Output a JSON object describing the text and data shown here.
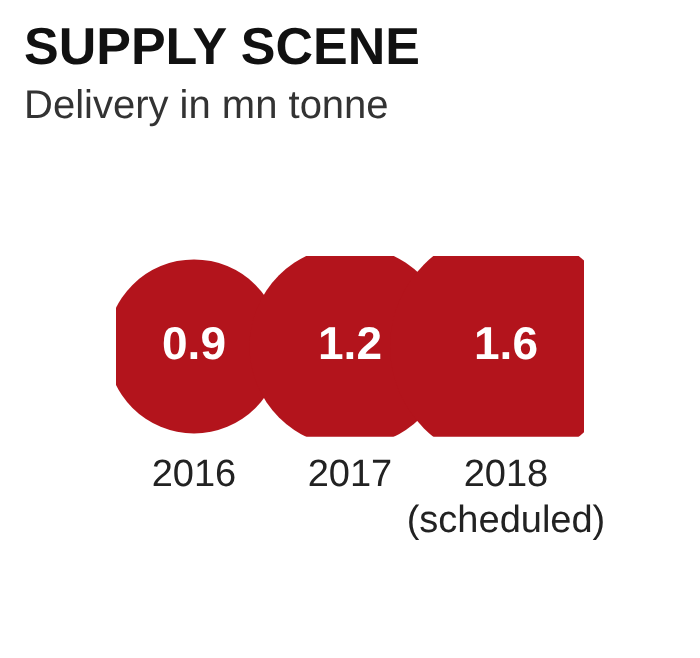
{
  "chart_data": {
    "type": "other",
    "title": "SUPPLY SCENE",
    "subtitle": "Delivery in mn tonne",
    "categories": [
      "2016",
      "2017",
      "2018\n(scheduled)"
    ],
    "values": [
      0.9,
      1.2,
      1.6
    ],
    "color": "#b3141c",
    "data_labels": true
  }
}
